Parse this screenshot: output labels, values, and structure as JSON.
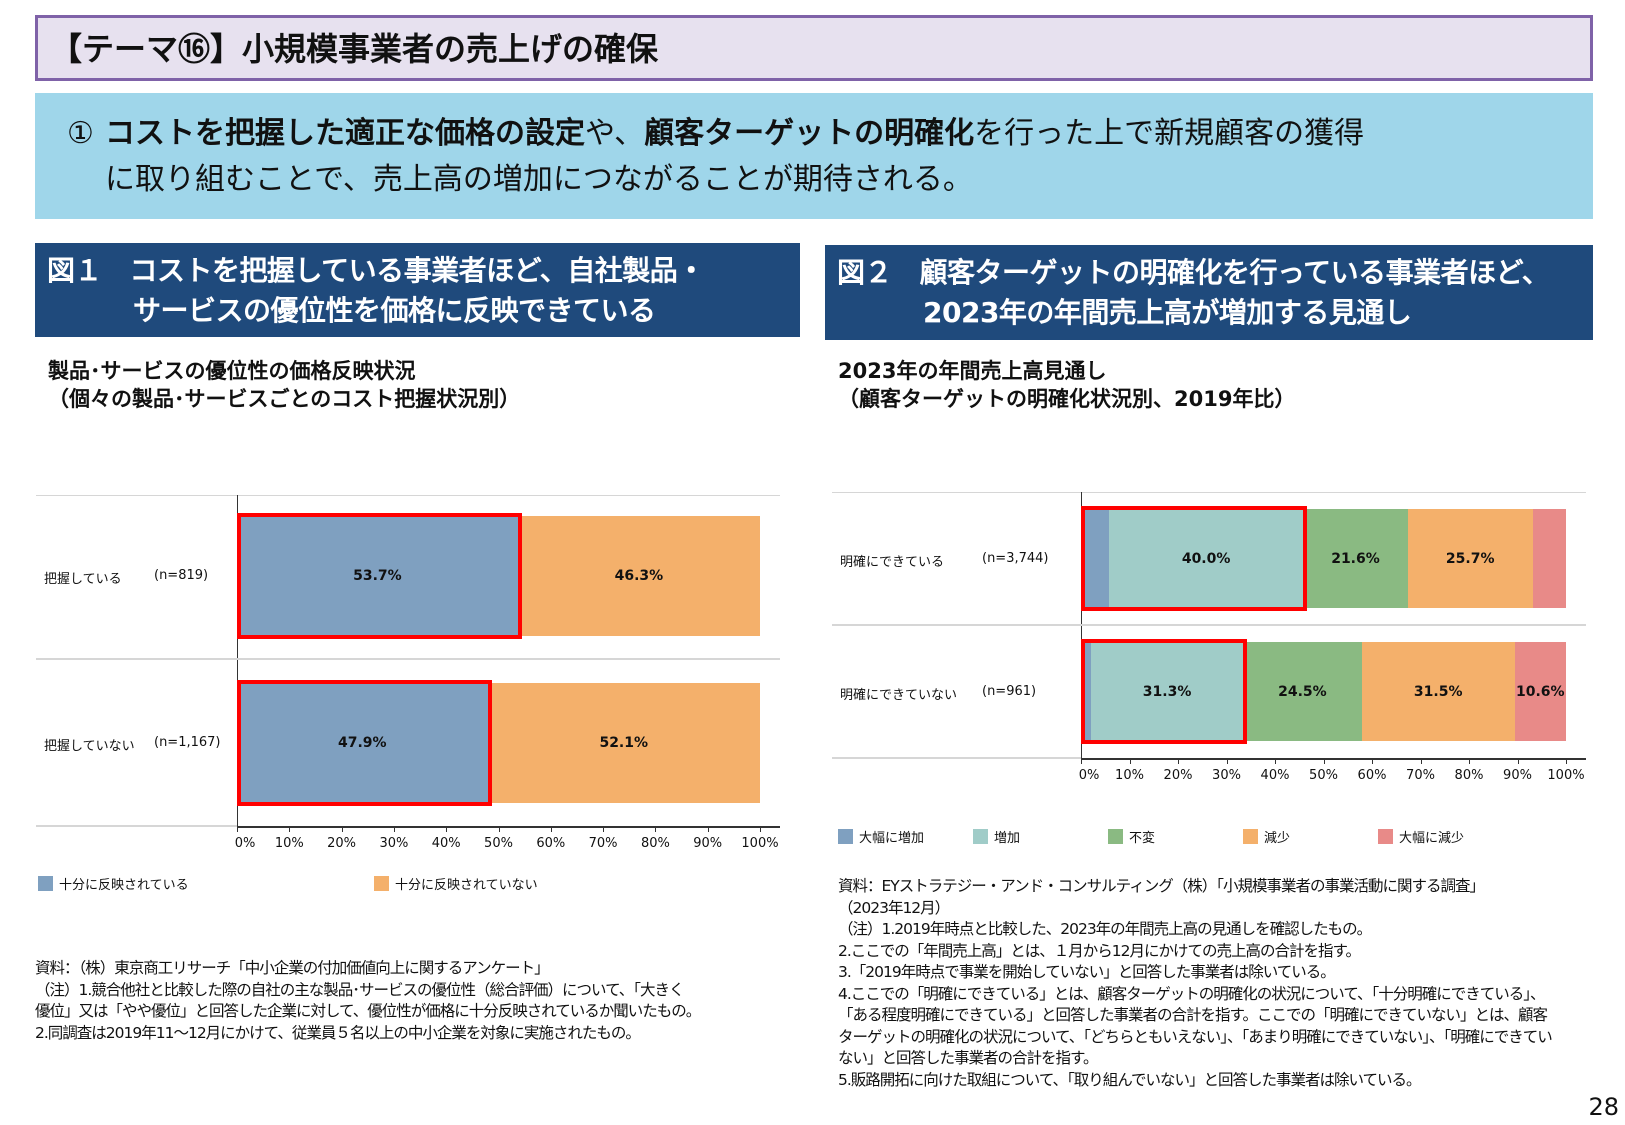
{
  "title": "【テーマ⑯】小規模事業者の売上げの確保",
  "banner": {
    "num": "①",
    "bold1": "コストを把握した適正な価格の設定",
    "t1": "や、",
    "bold2": "顧客ターゲットの明確化",
    "t2": "を行った上で新規顧客の獲得",
    "line2": "に取り組むことで、売上高の増加につながることが期待される。"
  },
  "fig1": {
    "header1": "図１　コストを把握している事業者ほど、自社製品・",
    "header2": "サービスの優位性を価格に反映できている",
    "sub1": "製品･サービスの優位性の価格反映状況",
    "sub2": "（個々の製品･サービスごとのコスト把握状況別）",
    "notes": [
      "資料：（株）東京商工リサーチ「中小企業の付加価値向上に関するアンケート」",
      "（注）1.競合他社と比較した際の自社の主な製品･サービスの優位性（総合評価）について、「大きく",
      "優位」又は「やや優位」と回答した企業に対して、優位性が価格に十分反映されているか聞いたもの。",
      "2.同調査は2019年11～12月にかけて、従業員５名以上の中小企業を対象に実施されたもの。"
    ]
  },
  "fig2": {
    "header1": "図２　顧客ターゲットの明確化を行っている事業者ほど、",
    "header2": "2023年の年間売上高が増加する見通し",
    "sub1": "2023年の年間売上高見通し",
    "sub2": "（顧客ターゲットの明確化状況別、2019年比）",
    "notes": [
      "資料：EYストラテジー・アンド・コンサルティング（株）「小規模事業者の事業活動に関する調査」",
      "（2023年12月）",
      "（注）1.2019年時点と比較した、2023年の年間売上高の見通しを確認したもの。",
      "2.ここでの「年間売上高」とは、１月から12月にかけての売上高の合計を指す。",
      "3.「2019年時点で事業を開始していない」と回答した事業者は除いている。",
      "4.ここでの「明確にできている」とは、顧客ターゲットの明確化の状況について、「十分明確にできている」、",
      "「ある程度明確にできている」と回答した事業者の合計を指す。ここでの「明確にできていない」とは、顧客",
      "ターゲットの明確化の状況について、「どちらともいえない」、「あまり明確にできていない」、「明確にできてい",
      "ない」と回答した事業者の合計を指す。",
      "5.販路開拓に向けた取組について、「取り組んでいない」と回答した事業者は除いている。"
    ]
  },
  "page_number": "28",
  "chart_data": [
    {
      "type": "bar",
      "orientation": "horizontal",
      "stacked": true,
      "percent": true,
      "categories": [
        "把握している",
        "把握していない"
      ],
      "n": [
        "(n=819)",
        "(n=1,167)"
      ],
      "series": [
        {
          "name": "十分に反映されている",
          "color": "#7fa0c0",
          "values": [
            53.7,
            47.9
          ],
          "labels": [
            "53.7%",
            "47.9%"
          ]
        },
        {
          "name": "十分に反映されていない",
          "color": "#f4b06b",
          "values": [
            46.3,
            52.1
          ],
          "labels": [
            "46.3%",
            "52.1%"
          ]
        }
      ],
      "highlight_series": [
        0
      ],
      "highlight_color": "#ff0000",
      "xticks": [
        "0%",
        "10%",
        "20%",
        "30%",
        "40%",
        "50%",
        "60%",
        "70%",
        "80%",
        "90%",
        "100%"
      ],
      "xlim": [
        0,
        100
      ],
      "legend": "bottom"
    },
    {
      "type": "bar",
      "orientation": "horizontal",
      "stacked": true,
      "percent": true,
      "categories": [
        "明確にできている",
        "明確にできていない"
      ],
      "n": [
        "(n=3,744)",
        "(n=961)"
      ],
      "series": [
        {
          "name": "大幅に増加",
          "color": "#7fa0c0",
          "values": [
            5.8,
            2.1
          ],
          "labels": [
            "",
            ""
          ]
        },
        {
          "name": "増加",
          "color": "#a0ccc8",
          "values": [
            40.0,
            31.3
          ],
          "labels": [
            "40.0%",
            "31.3%"
          ]
        },
        {
          "name": "不変",
          "color": "#8aba82",
          "values": [
            21.6,
            24.5
          ],
          "labels": [
            "21.6%",
            "24.5%"
          ]
        },
        {
          "name": "減少",
          "color": "#f4b06b",
          "values": [
            25.7,
            31.5
          ],
          "labels": [
            "25.7%",
            "31.5%"
          ]
        },
        {
          "name": "大幅に減少",
          "color": "#e88a88",
          "values": [
            6.9,
            10.6
          ],
          "labels": [
            "",
            "10.6%"
          ]
        }
      ],
      "highlight_series": [
        0,
        1
      ],
      "highlight_color": "#ff0000",
      "xticks": [
        "0%",
        "10%",
        "20%",
        "30%",
        "40%",
        "50%",
        "60%",
        "70%",
        "80%",
        "90%",
        "100%"
      ],
      "xlim": [
        0,
        100
      ],
      "legend": "bottom"
    }
  ]
}
